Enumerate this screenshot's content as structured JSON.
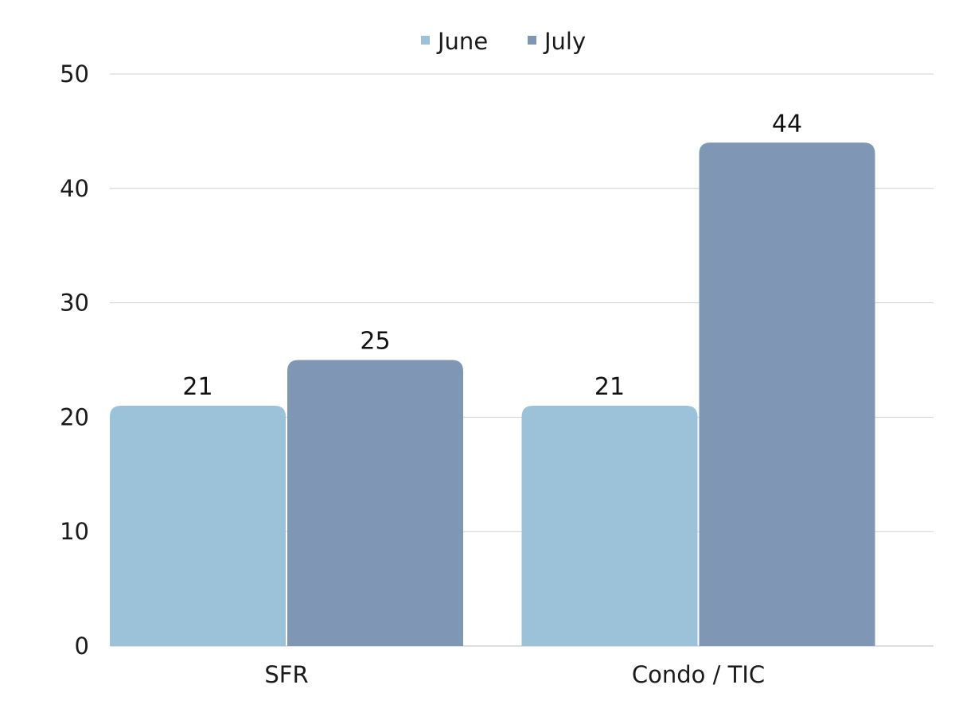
{
  "chart_data": {
    "type": "bar",
    "categories": [
      "SFR",
      "Condo / TIC"
    ],
    "series": [
      {
        "name": "June",
        "values": [
          21,
          21
        ],
        "color": "#9bc2d8"
      },
      {
        "name": "July",
        "values": [
          25,
          44
        ],
        "color": "#7f97b4"
      }
    ],
    "yticks": [
      0,
      10,
      20,
      30,
      40,
      50
    ],
    "ylim": [
      0,
      50
    ],
    "title": "",
    "xlabel": "",
    "ylabel": "",
    "grid": true,
    "legend_position": "top-center",
    "data_labels": true,
    "gridline_color": "#d0d0d0",
    "axis_color": "#bfbfbf"
  }
}
